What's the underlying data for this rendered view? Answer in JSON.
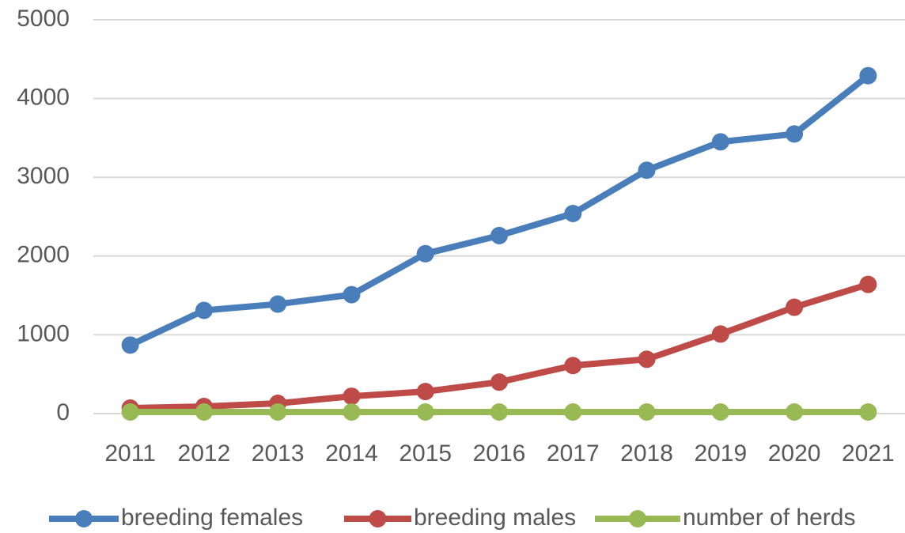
{
  "chart_data": {
    "type": "line",
    "categories": [
      "2011",
      "2012",
      "2013",
      "2014",
      "2015",
      "2016",
      "2017",
      "2018",
      "2019",
      "2020",
      "2021"
    ],
    "series": [
      {
        "name": "breeding females",
        "color": "#4a7ebb",
        "values": [
          870,
          1310,
          1390,
          1510,
          2030,
          2260,
          2540,
          3090,
          3450,
          3550,
          4290
        ]
      },
      {
        "name": "breeding males",
        "color": "#be4b48",
        "values": [
          70,
          90,
          130,
          220,
          280,
          400,
          610,
          690,
          1010,
          1350,
          1640
        ]
      },
      {
        "name": "number of herds",
        "color": "#98b954",
        "values": [
          20,
          20,
          20,
          20,
          20,
          20,
          20,
          20,
          20,
          20,
          20
        ]
      }
    ],
    "ylim": [
      0,
      5000
    ],
    "yticks": [
      0,
      1000,
      2000,
      3000,
      4000,
      5000
    ],
    "grid": true,
    "legend": "bottom"
  }
}
